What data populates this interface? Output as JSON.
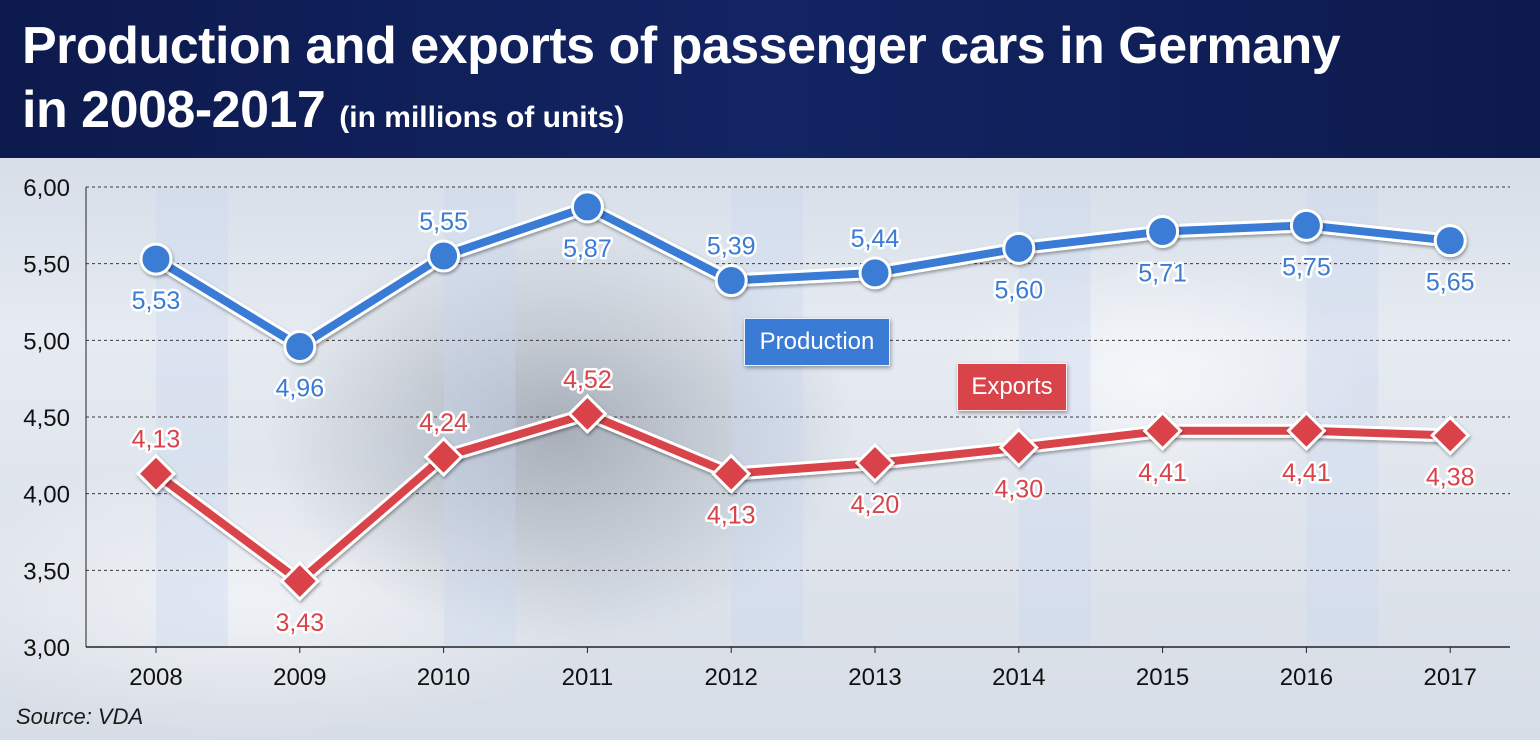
{
  "header": {
    "title_line1": "Production and exports of passenger cars in Germany",
    "title_line2": "in 2008-2017",
    "title_unit": "(in millions of units)"
  },
  "source": "Source: VDA",
  "colors": {
    "production": "#3a7bd5",
    "exports": "#d9434a",
    "header_bg": "#0d1a4d"
  },
  "chart_data": {
    "type": "line",
    "title": "Production and exports of passenger cars in Germany in 2008-2017",
    "subtitle": "(in millions of units)",
    "categories": [
      "2008",
      "2009",
      "2010",
      "2011",
      "2012",
      "2013",
      "2014",
      "2015",
      "2016",
      "2017"
    ],
    "yticks": [
      "6,00",
      "5,50",
      "5,00",
      "4,50",
      "4,00",
      "3,50",
      "3,00"
    ],
    "ylim": [
      3.0,
      6.0
    ],
    "grid": true,
    "series": [
      {
        "name": "Production",
        "marker": "circle",
        "values": [
          5.53,
          4.96,
          5.55,
          5.87,
          5.39,
          5.44,
          5.6,
          5.71,
          5.75,
          5.65
        ],
        "labels": [
          "5,53",
          "4,96",
          "5,55",
          "5,87",
          "5,39",
          "5,44",
          "5,60",
          "5,71",
          "5,75",
          "5,65"
        ]
      },
      {
        "name": "Exports",
        "marker": "diamond",
        "values": [
          4.13,
          3.43,
          4.24,
          4.52,
          4.13,
          4.2,
          4.3,
          4.41,
          4.41,
          4.38
        ],
        "labels": [
          "4,13",
          "3,43",
          "4,24",
          "4,52",
          "4,13",
          "4,20",
          "4,30",
          "4,41",
          "4,41",
          "4,38"
        ]
      }
    ]
  }
}
